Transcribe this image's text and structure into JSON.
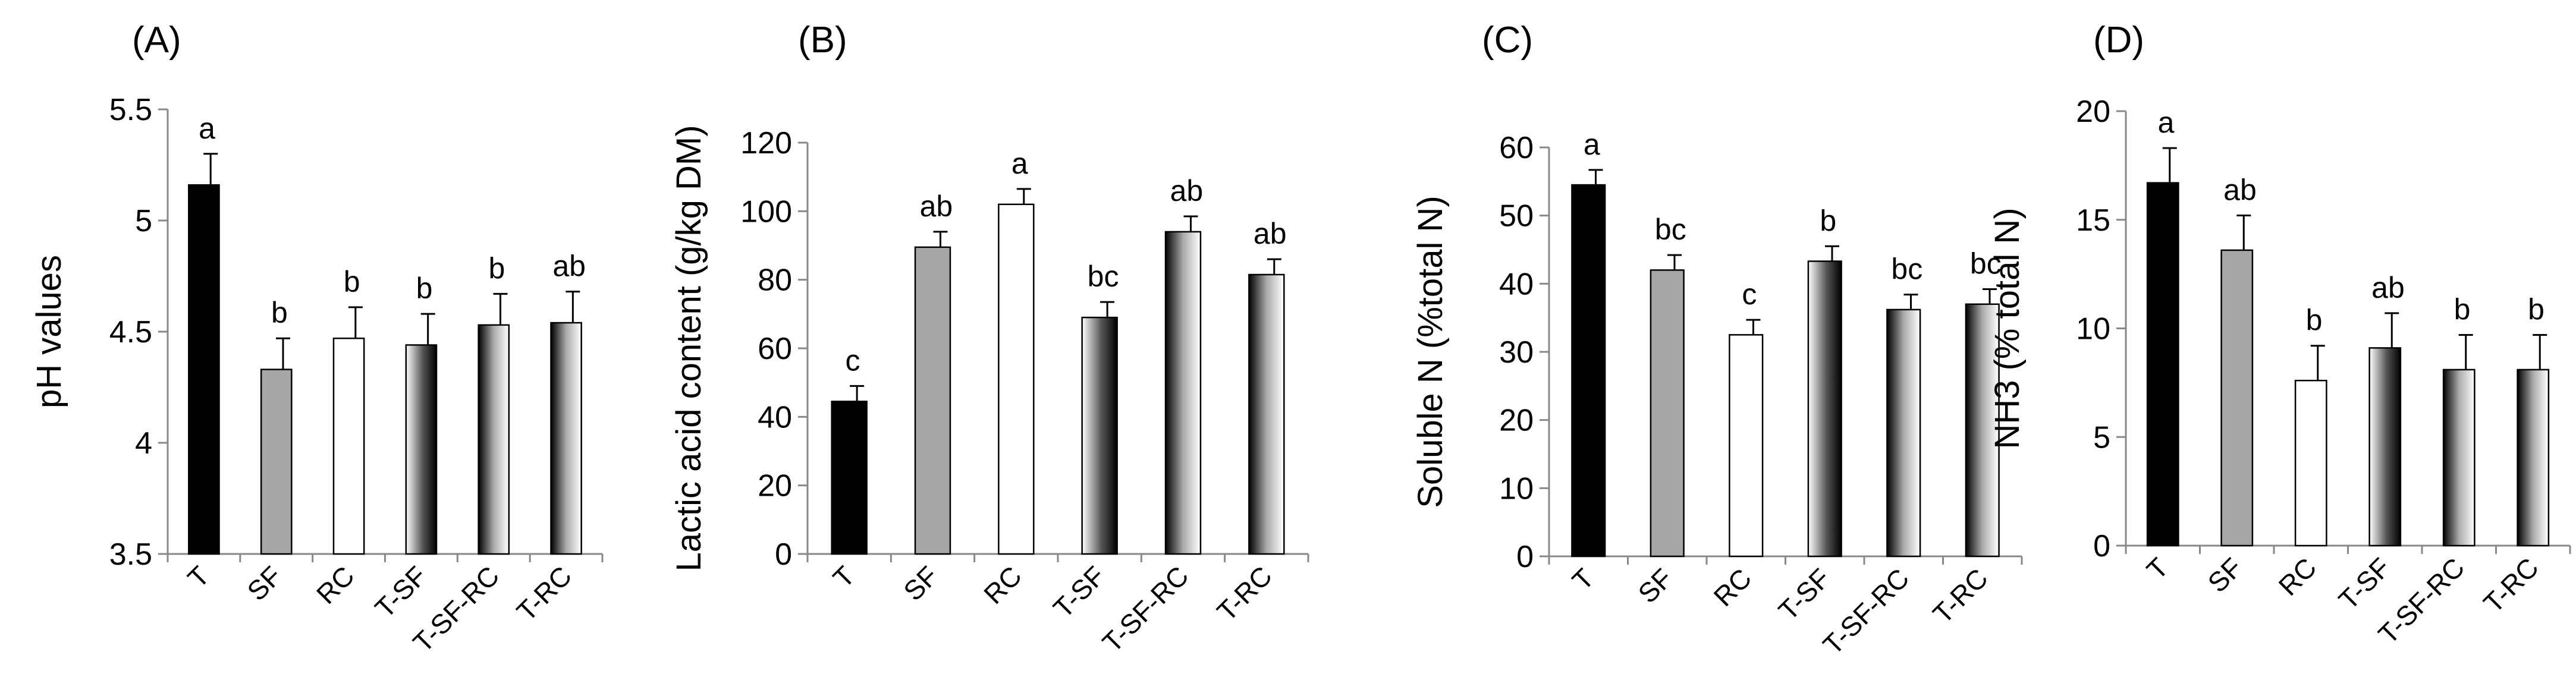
{
  "chart_data": [
    {
      "type": "bar",
      "panel": "(A)",
      "ylabel": "pH values",
      "ylim": [
        3.5,
        5.5
      ],
      "yticks": [
        "3.5",
        "4",
        "4.5",
        "5",
        "5.5"
      ],
      "ytick_values": [
        3.5,
        4,
        4.5,
        5,
        5.5
      ],
      "categories": [
        "T",
        "SF",
        "RC",
        "T-SF",
        "T-SF-RC",
        "T-RC"
      ],
      "values": [
        5.16,
        4.33,
        4.47,
        4.44,
        4.53,
        4.54
      ],
      "errors": [
        0.14,
        0.14,
        0.14,
        0.14,
        0.14,
        0.14
      ],
      "letters": [
        "a",
        "b",
        "b",
        "b",
        "b",
        "ab"
      ]
    },
    {
      "type": "bar",
      "panel": "(B)",
      "ylabel": "Lactic acid content (g/kg DM)",
      "ylim": [
        0,
        120
      ],
      "yticks": [
        "0",
        "20",
        "40",
        "60",
        "80",
        "100",
        "120"
      ],
      "ytick_values": [
        0,
        20,
        40,
        60,
        80,
        100,
        120
      ],
      "categories": [
        "T",
        "SF",
        "RC",
        "T-SF",
        "T-SF-RC",
        "T-RC"
      ],
      "values": [
        44.5,
        89.5,
        102,
        69,
        94,
        81.5
      ],
      "errors": [
        4.5,
        4.5,
        4.5,
        4.5,
        4.5,
        4.5
      ],
      "letters": [
        "c",
        "ab",
        "a",
        "bc",
        "ab",
        "ab"
      ]
    },
    {
      "type": "bar",
      "panel": "(C)",
      "ylabel": "Soluble N (%total N)",
      "ylim": [
        0,
        60
      ],
      "yticks": [
        "0",
        "10",
        "20",
        "30",
        "40",
        "50",
        "60"
      ],
      "ytick_values": [
        0,
        10,
        20,
        30,
        40,
        50,
        60
      ],
      "categories": [
        "T",
        "SF",
        "RC",
        "T-SF",
        "T-SF-RC",
        "T-RC"
      ],
      "values": [
        54.5,
        42,
        32.5,
        43.3,
        36.2,
        37
      ],
      "errors": [
        2.2,
        2.2,
        2.2,
        2.2,
        2.2,
        2.2
      ],
      "letters": [
        "a",
        "bc",
        "c",
        "b",
        "bc",
        "bc"
      ]
    },
    {
      "type": "bar",
      "panel": "(D)",
      "ylabel": "NH3 (% total N)",
      "ylim": [
        0,
        20
      ],
      "yticks": [
        "0",
        "5",
        "10",
        "15",
        "20"
      ],
      "ytick_values": [
        0,
        5,
        10,
        15,
        20
      ],
      "categories": [
        "T",
        "SF",
        "RC",
        "T-SF",
        "T-SF-RC",
        "T-RC"
      ],
      "values": [
        16.7,
        13.6,
        7.6,
        9.1,
        8.1,
        8.1
      ],
      "errors": [
        1.6,
        1.6,
        1.6,
        1.6,
        1.6,
        1.6
      ],
      "letters": [
        "a",
        "ab",
        "b",
        "ab",
        "b",
        "b"
      ]
    }
  ],
  "fills": {
    "T": "#000000",
    "SF": "#a6a6a6",
    "RC": "#ffffff",
    "T-SF": "gradient-dark-to-light",
    "T-SF-RC": "gradient-light-to-dark",
    "T-RC": "gradient-light-to-dark"
  }
}
